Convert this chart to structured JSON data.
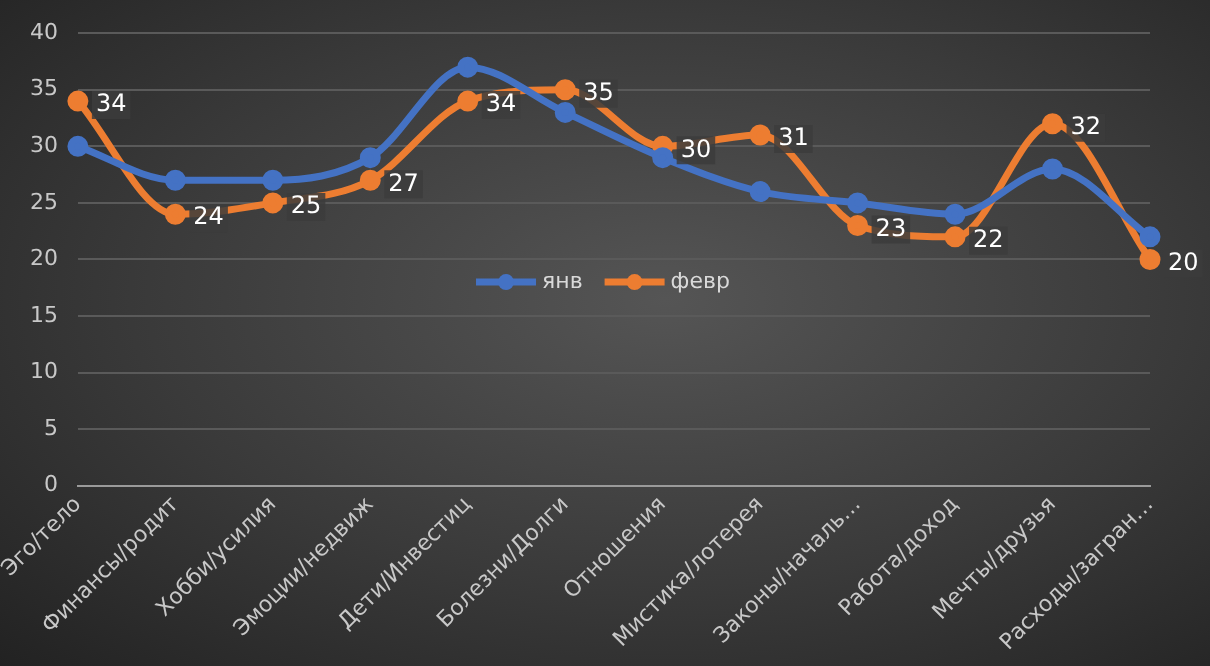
{
  "chart_data": {
    "type": "line",
    "categories": [
      "Эго/тело",
      "Финансы/родит",
      "Хобби/усилия",
      "Эмоции/недвиж",
      "Дети/Инвестиц",
      "Болезни/Долги",
      "Отношения",
      "Мистика/лотерея",
      "Законы/началь…",
      "Работа/доход",
      "Мечты/друзья",
      "Расходы/загран…"
    ],
    "series": [
      {
        "name": "янв",
        "color": "#4472c4",
        "values": [
          30,
          27,
          27,
          29,
          37,
          33,
          29,
          26,
          25,
          24,
          28,
          22
        ]
      },
      {
        "name": "февр",
        "color": "#ed7d31",
        "values": [
          34,
          24,
          25,
          27,
          34,
          35,
          30,
          31,
          23,
          22,
          32,
          20
        ],
        "value_labels": [
          "34",
          "24",
          "25",
          "27",
          "34",
          "35",
          "30",
          "31",
          "23",
          "22",
          "32",
          "20"
        ]
      }
    ],
    "ylim": [
      0,
      40
    ],
    "yticks": [
      0,
      5,
      10,
      15,
      20,
      25,
      30,
      35,
      40
    ],
    "grid": "y",
    "legend": "center",
    "marker": "circle",
    "line_style": "solid"
  }
}
